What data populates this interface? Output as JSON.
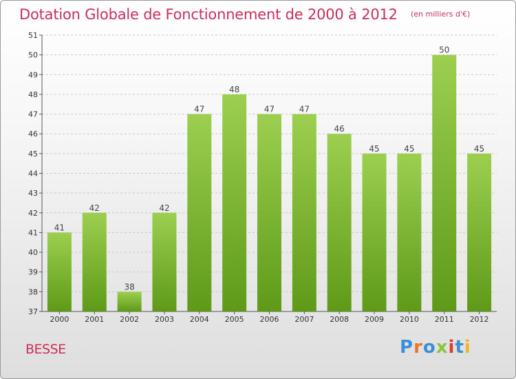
{
  "header": {
    "title": "Dotation Globale de Fonctionnement de 2000 à 2012",
    "unit_note": "(en milliers d'€)"
  },
  "footer": {
    "commune": "BESSE",
    "brand": [
      "P",
      "r",
      "o",
      "x",
      "i",
      "t",
      "i"
    ]
  },
  "colors": {
    "title": "#c8305a",
    "bar_top": "#9ccf50",
    "bar_bottom": "#5e9a18",
    "grid": "#c8c8c8"
  },
  "chart_data": {
    "type": "bar",
    "categories": [
      "2000",
      "2001",
      "2002",
      "2003",
      "2004",
      "2005",
      "2006",
      "2007",
      "2008",
      "2009",
      "2010",
      "2011",
      "2012"
    ],
    "values": [
      41,
      42,
      38,
      42,
      47,
      48,
      47,
      47,
      46,
      45,
      45,
      50,
      45
    ],
    "data_labels": [
      "41",
      "42",
      "38",
      "42",
      "47",
      "48",
      "47",
      "47",
      "46",
      "45",
      "45",
      "50",
      "45"
    ],
    "ylim": [
      37,
      51
    ],
    "yticks": [
      37,
      38,
      39,
      40,
      41,
      42,
      43,
      44,
      45,
      46,
      47,
      48,
      49,
      50,
      51
    ],
    "grid": true,
    "grid_style": "dashed-horizontal"
  }
}
